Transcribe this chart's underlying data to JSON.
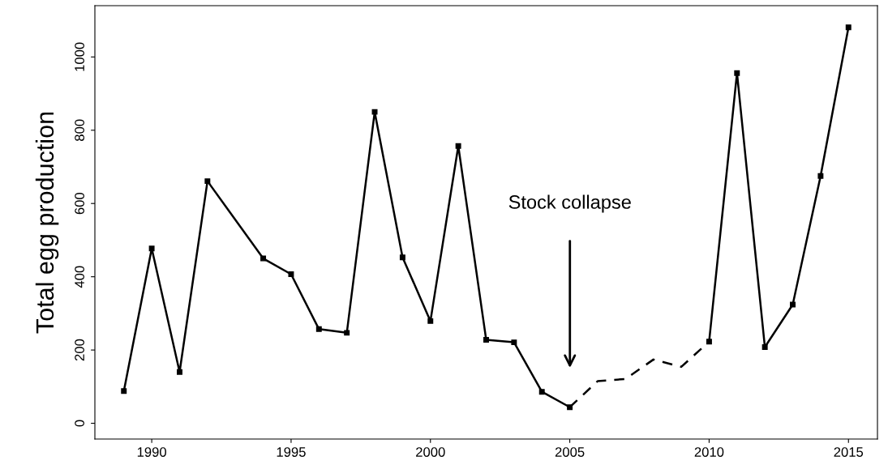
{
  "chart_data": {
    "type": "line",
    "ylabel": "Total egg production",
    "series": [
      {
        "color": "#000000",
        "line_style": "solid",
        "marker": "square",
        "x": [
          1989,
          1990,
          1991,
          1992,
          1994,
          1995,
          1996,
          1997,
          1998,
          1999,
          2000,
          2001,
          2002,
          2003,
          2004,
          2005
        ],
        "values": [
          88,
          477,
          140,
          661,
          450,
          407,
          257,
          247,
          850,
          453,
          279,
          757,
          228,
          221,
          86,
          44
        ]
      },
      {
        "color": "#000000",
        "line_style": "dashed",
        "marker": "none",
        "x": [
          2005,
          2006,
          2007,
          2008,
          2009,
          2010
        ],
        "values": [
          44,
          115,
          121,
          174,
          154,
          223
        ]
      },
      {
        "color": "#000000",
        "line_style": "solid",
        "marker": "square",
        "x": [
          2010,
          2011,
          2012,
          2013,
          2014,
          2015
        ],
        "values": [
          223,
          956,
          208,
          324,
          675,
          1081
        ]
      }
    ],
    "xlim": [
      1987.96,
      2016.04
    ],
    "xticks": [
      1990,
      1995,
      2000,
      2005,
      2010,
      2015
    ],
    "ylim": [
      -43,
      1140
    ],
    "yticks": [
      0,
      200,
      400,
      600,
      800,
      1000
    ],
    "grid": false,
    "legend": false,
    "annotations": [
      "Stock collapse"
    ]
  }
}
